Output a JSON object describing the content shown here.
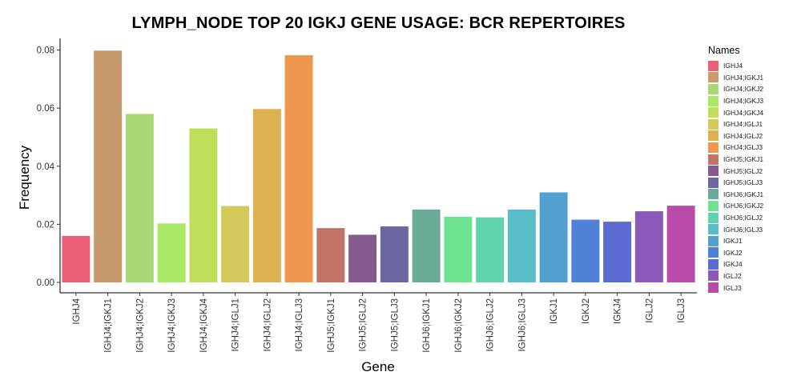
{
  "chart_data": {
    "type": "bar",
    "title": "LYMPH_NODE TOP 20 IGKJ GENE USAGE: BCR REPERTOIRES",
    "xlabel": "Gene",
    "ylabel": "Frequency",
    "ylim": [
      0,
      0.084
    ],
    "yticks": [
      "0.00",
      "0.02",
      "0.04",
      "0.06",
      "0.08"
    ],
    "categories": [
      "IGHJ4",
      "IGHJ4;IGKJ1",
      "IGHJ4;IGKJ2",
      "IGHJ4;IGKJ3",
      "IGHJ4;IGKJ4",
      "IGHJ4;IGLJ1",
      "IGHJ4;IGLJ2",
      "IGHJ4;IGLJ3",
      "IGHJ5;IGKJ1",
      "IGHJ5;IGLJ2",
      "IGHJ5;IGLJ3",
      "IGHJ6;IGKJ1",
      "IGHJ6;IGKJ2",
      "IGHJ6;IGLJ2",
      "IGHJ6;IGLJ3",
      "IGKJ1",
      "IGKJ2",
      "IGKJ4",
      "IGLJ2",
      "IGLJ3"
    ],
    "values": [
      0.016,
      0.0798,
      0.058,
      0.0203,
      0.053,
      0.0263,
      0.0597,
      0.0782,
      0.0187,
      0.0164,
      0.0193,
      0.0251,
      0.0226,
      0.0224,
      0.0251,
      0.031,
      0.0216,
      0.0209,
      0.0245,
      0.0264
    ],
    "colors": [
      "#ec6077",
      "#c89b6e",
      "#a8d873",
      "#a8e864",
      "#c1de5b",
      "#d3c85a",
      "#ddb150",
      "#ef974e",
      "#c27467",
      "#855a8f",
      "#6a67a1",
      "#6aaa99",
      "#6de38f",
      "#61d2b0",
      "#58bdc8",
      "#52a0d0",
      "#4f82d7",
      "#5c6bd1",
      "#8a5ab8",
      "#b84ba8"
    ],
    "legend_title": "Names",
    "legend_position": "right",
    "grid": false
  }
}
